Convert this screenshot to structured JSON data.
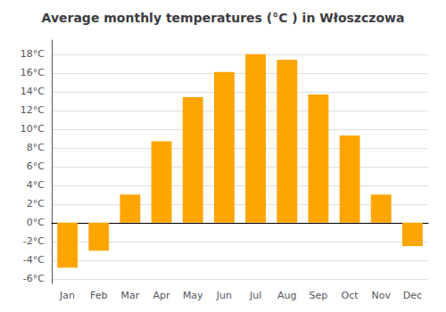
{
  "chart_data": {
    "type": "bar",
    "title": "Average monthly temperatures (°C ) in Włoszczowa",
    "categories": [
      "Jan",
      "Feb",
      "Mar",
      "Apr",
      "May",
      "Jun",
      "Jul",
      "Aug",
      "Sep",
      "Oct",
      "Nov",
      "Dec"
    ],
    "values": [
      -4.8,
      -3.0,
      3.0,
      8.7,
      13.4,
      16.1,
      18.0,
      17.4,
      13.7,
      9.3,
      3.0,
      -2.5
    ],
    "color": "#FFA500",
    "ylim": [
      -6.5,
      19.5
    ],
    "yticks": [
      {
        "value": -6,
        "label": "-6°C"
      },
      {
        "value": -4,
        "label": "-4°C"
      },
      {
        "value": -2,
        "label": "-2°C"
      },
      {
        "value": 0,
        "label": "0°C"
      },
      {
        "value": 2,
        "label": "2°C"
      },
      {
        "value": 4,
        "label": "4°C"
      },
      {
        "value": 6,
        "label": "6°C"
      },
      {
        "value": 8,
        "label": "8°C"
      },
      {
        "value": 10,
        "label": "10°C"
      },
      {
        "value": 12,
        "label": "12°C"
      },
      {
        "value": 14,
        "label": "14°C"
      },
      {
        "value": 16,
        "label": "16°C"
      },
      {
        "value": 18,
        "label": "18°C"
      }
    ],
    "grid": true
  }
}
